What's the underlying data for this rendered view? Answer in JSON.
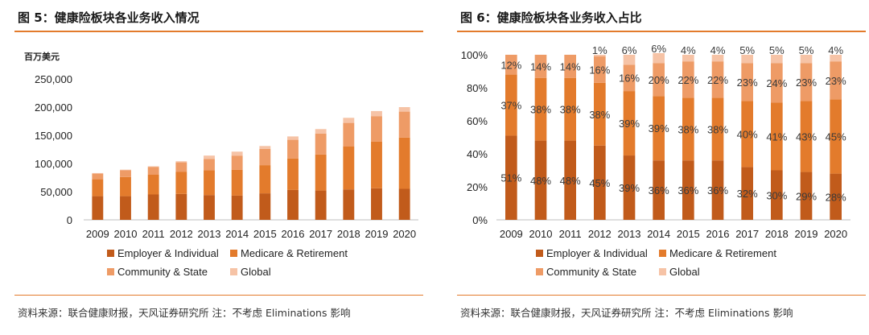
{
  "colors": {
    "employer": "#C15B1B",
    "medicare": "#E37B2C",
    "community": "#EE9B66",
    "global": "#F6C3A6",
    "rule": "#E37B2C"
  },
  "panels": [
    {
      "title": "图 5：健康险板块各业务收入情况",
      "source": "资料来源：联合健康财报，天风证券研究所 注：不考虑 Eliminations 影响"
    },
    {
      "title": "图 6：健康险板块各业务收入占比",
      "source": "资料来源：联合健康财报，天风证券研究所 注：不考虑 Eliminations 影响"
    }
  ],
  "chart_data": [
    {
      "type": "bar",
      "stacked": true,
      "unit_label": "百万美元",
      "categories": [
        "2009",
        "2010",
        "2011",
        "2012",
        "2013",
        "2014",
        "2015",
        "2016",
        "2017",
        "2018",
        "2019",
        "2020"
      ],
      "ylim": [
        0,
        250000
      ],
      "yticks": [
        0,
        50000,
        100000,
        150000,
        200000,
        250000
      ],
      "ytick_labels": [
        "0",
        "50,000",
        "100,000",
        "150,000",
        "200,000",
        "250,000"
      ],
      "series": [
        {
          "name": "Employer & Individual",
          "values": [
            42000,
            42000,
            45000,
            46000,
            44000,
            43000,
            47000,
            53000,
            52000,
            54000,
            56000,
            55000
          ]
        },
        {
          "name": "Medicare & Retirement",
          "values": [
            30000,
            34000,
            35000,
            39000,
            44000,
            46000,
            50000,
            56000,
            64000,
            76000,
            83000,
            91000
          ]
        },
        {
          "name": "Community & State",
          "values": [
            10000,
            12000,
            14000,
            17000,
            20000,
            25000,
            29000,
            33000,
            37000,
            42000,
            45000,
            46000
          ]
        },
        {
          "name": "Global",
          "values": [
            1000,
            1000,
            1000,
            2000,
            6000,
            7000,
            5000,
            6000,
            8000,
            9000,
            9000,
            8000
          ]
        }
      ],
      "legend_position": "bottom"
    },
    {
      "type": "bar",
      "stacked": true,
      "categories": [
        "2009",
        "2010",
        "2011",
        "2012",
        "2013",
        "2014",
        "2015",
        "2016",
        "2017",
        "2018",
        "2019",
        "2020"
      ],
      "ylim": [
        0,
        100
      ],
      "yticks": [
        0,
        20,
        40,
        60,
        80,
        100
      ],
      "ytick_labels": [
        "0%",
        "20%",
        "40%",
        "60%",
        "80%",
        "100%"
      ],
      "series": [
        {
          "name": "Employer & Individual",
          "values": [
            51,
            48,
            48,
            45,
            39,
            36,
            36,
            36,
            32,
            30,
            29,
            28
          ],
          "labels": [
            "51%",
            "48%",
            "48%",
            "45%",
            "39%",
            "36%",
            "36%",
            "36%",
            "32%",
            "30%",
            "29%",
            "28%"
          ]
        },
        {
          "name": "Medicare & Retirement",
          "values": [
            37,
            38,
            38,
            38,
            39,
            39,
            38,
            38,
            40,
            41,
            43,
            45
          ],
          "labels": [
            "37%",
            "38%",
            "38%",
            "38%",
            "39%",
            "39%",
            "38%",
            "38%",
            "40%",
            "41%",
            "43%",
            "45%"
          ]
        },
        {
          "name": "Community & State",
          "values": [
            12,
            14,
            14,
            16,
            16,
            20,
            22,
            22,
            23,
            24,
            23,
            23
          ],
          "labels": [
            "12%",
            "14%",
            "14%",
            "16%",
            "16%",
            "20%",
            "22%",
            "22%",
            "23%",
            "24%",
            "23%",
            "23%"
          ]
        },
        {
          "name": "Global",
          "values": [
            0,
            0,
            0,
            1,
            6,
            6,
            4,
            4,
            5,
            5,
            5,
            4
          ],
          "labels": [
            "",
            "",
            "",
            "1%",
            "6%",
            "6%",
            "4%",
            "4%",
            "5%",
            "5%",
            "5%",
            "4%"
          ]
        }
      ],
      "legend_position": "bottom"
    }
  ]
}
